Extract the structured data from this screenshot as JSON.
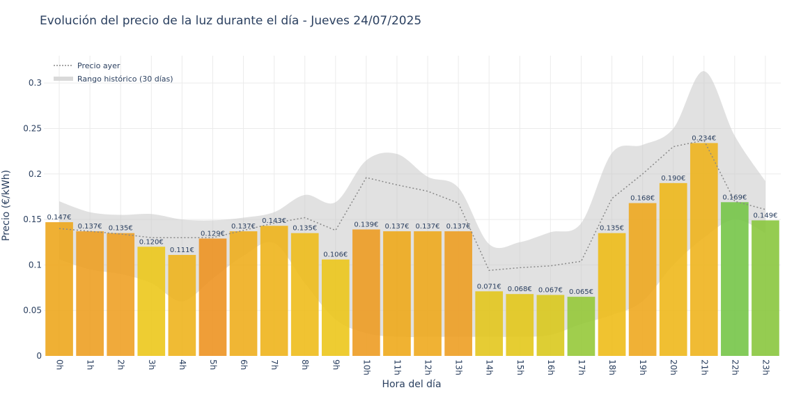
{
  "chart_data": {
    "type": "bar",
    "title": "Evolución del precio de la luz durante el día - Jueves 24/07/2025",
    "xlabel": "Hora del día",
    "ylabel": "Precio (€/kWh)",
    "ylim": [
      0,
      0.33
    ],
    "yticks": [
      "0",
      "0.05",
      "0.1",
      "0.15",
      "0.2",
      "0.25",
      "0.3"
    ],
    "ytick_values": [
      0,
      0.05,
      0.1,
      0.15,
      0.2,
      0.25,
      0.3
    ],
    "categories": [
      "0h",
      "1h",
      "2h",
      "3h",
      "4h",
      "5h",
      "6h",
      "7h",
      "8h",
      "9h",
      "10h",
      "11h",
      "12h",
      "13h",
      "14h",
      "15h",
      "16h",
      "17h",
      "18h",
      "19h",
      "20h",
      "21h",
      "22h",
      "23h"
    ],
    "values": [
      0.147,
      0.137,
      0.135,
      0.12,
      0.111,
      0.129,
      0.137,
      0.143,
      0.135,
      0.106,
      0.139,
      0.137,
      0.137,
      0.137,
      0.071,
      0.068,
      0.067,
      0.065,
      0.135,
      0.168,
      0.19,
      0.234,
      0.169,
      0.149
    ],
    "labels": [
      "0.147€",
      "0.137€",
      "0.135€",
      "0.120€",
      "0.111€",
      "0.129€",
      "0.137€",
      "0.143€",
      "0.135€",
      "0.106€",
      "0.139€",
      "0.137€",
      "0.137€",
      "0.137€",
      "0.071€",
      "0.068€",
      "0.067€",
      "0.065€",
      "0.135€",
      "0.168€",
      "0.190€",
      "0.234€",
      "0.169€",
      "0.149€"
    ],
    "bar_colors": [
      "#eda71e",
      "#eda024",
      "#eea126",
      "#ecc81c",
      "#eeb41e",
      "#ed9422",
      "#eeae1e",
      "#eeb41c",
      "#eebd1c",
      "#ecc61c",
      "#ed9c24",
      "#eeaa1c",
      "#eeaa1e",
      "#ed9e24",
      "#e3c71e",
      "#e3c81c",
      "#d9c91e",
      "#96c93a",
      "#eebd1a",
      "#eea820",
      "#eeb81c",
      "#eeb41e",
      "#76c548",
      "#8ac63e"
    ],
    "series": [
      {
        "name": "Precio ayer",
        "style": "dotted",
        "color": "#888888",
        "values": [
          0.14,
          0.137,
          0.134,
          0.13,
          0.13,
          0.13,
          0.138,
          0.146,
          0.152,
          0.138,
          0.196,
          0.188,
          0.181,
          0.168,
          0.094,
          0.097,
          0.099,
          0.104,
          0.173,
          0.2,
          0.23,
          0.237,
          0.17,
          0.161
        ]
      },
      {
        "name": "Rango histórico (30 días)",
        "style": "band",
        "color": "#d3d3d3",
        "upper": [
          0.17,
          0.158,
          0.155,
          0.156,
          0.15,
          0.149,
          0.152,
          0.158,
          0.177,
          0.169,
          0.215,
          0.222,
          0.197,
          0.185,
          0.123,
          0.125,
          0.136,
          0.146,
          0.223,
          0.232,
          0.25,
          0.313,
          0.242,
          0.192
        ],
        "lower": [
          0.106,
          0.095,
          0.09,
          0.08,
          0.06,
          0.085,
          0.11,
          0.124,
          0.08,
          0.04,
          0.025,
          0.021,
          0.021,
          0.021,
          0.021,
          0.021,
          0.023,
          0.035,
          0.045,
          0.06,
          0.1,
          0.13,
          0.15,
          0.135
        ]
      }
    ],
    "legend_position": "top-left",
    "grid": true
  }
}
